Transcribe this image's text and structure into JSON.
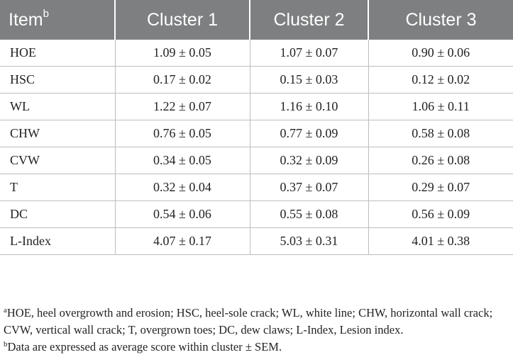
{
  "table": {
    "headers": {
      "item": "Item",
      "item_sup": "b",
      "cluster1": "Cluster 1",
      "cluster2": "Cluster 2",
      "cluster3": "Cluster 3"
    },
    "rows": [
      {
        "item": "HOE",
        "c1": "1.09 ± 0.05",
        "c2": "1.07 ± 0.07",
        "c3": "0.90 ± 0.06"
      },
      {
        "item": "HSC",
        "c1": "0.17 ± 0.02",
        "c2": "0.15 ± 0.03",
        "c3": "0.12 ± 0.02"
      },
      {
        "item": "WL",
        "c1": "1.22 ± 0.07",
        "c2": "1.16 ± 0.10",
        "c3": "1.06 ± 0.11"
      },
      {
        "item": "CHW",
        "c1": "0.76 ± 0.05",
        "c2": "0.77 ± 0.09",
        "c3": "0.58 ± 0.08"
      },
      {
        "item": "CVW",
        "c1": "0.34 ± 0.05",
        "c2": "0.32 ± 0.09",
        "c3": "0.26 ± 0.08"
      },
      {
        "item": "T",
        "c1": "0.32 ± 0.04",
        "c2": "0.37 ± 0.07",
        "c3": "0.29 ± 0.07"
      },
      {
        "item": "DC",
        "c1": "0.54 ± 0.06",
        "c2": "0.55 ± 0.08",
        "c3": "0.56 ± 0.09"
      },
      {
        "item": "L-Index",
        "c1": "4.07 ± 0.17",
        "c2": "5.03 ± 0.31",
        "c3": "4.01 ± 0.38"
      }
    ]
  },
  "footnotes": {
    "a_mark": "a",
    "a_text": "HOE, heel overgrowth and erosion; HSC, heel-sole crack; WL, white line; CHW, horizontal wall crack; CVW, vertical wall crack; T, overgrown toes; DC, dew claws; L-Index, Lesion index.",
    "b_mark": "b",
    "b_text": "Data are expressed as average score within cluster ± SEM."
  }
}
